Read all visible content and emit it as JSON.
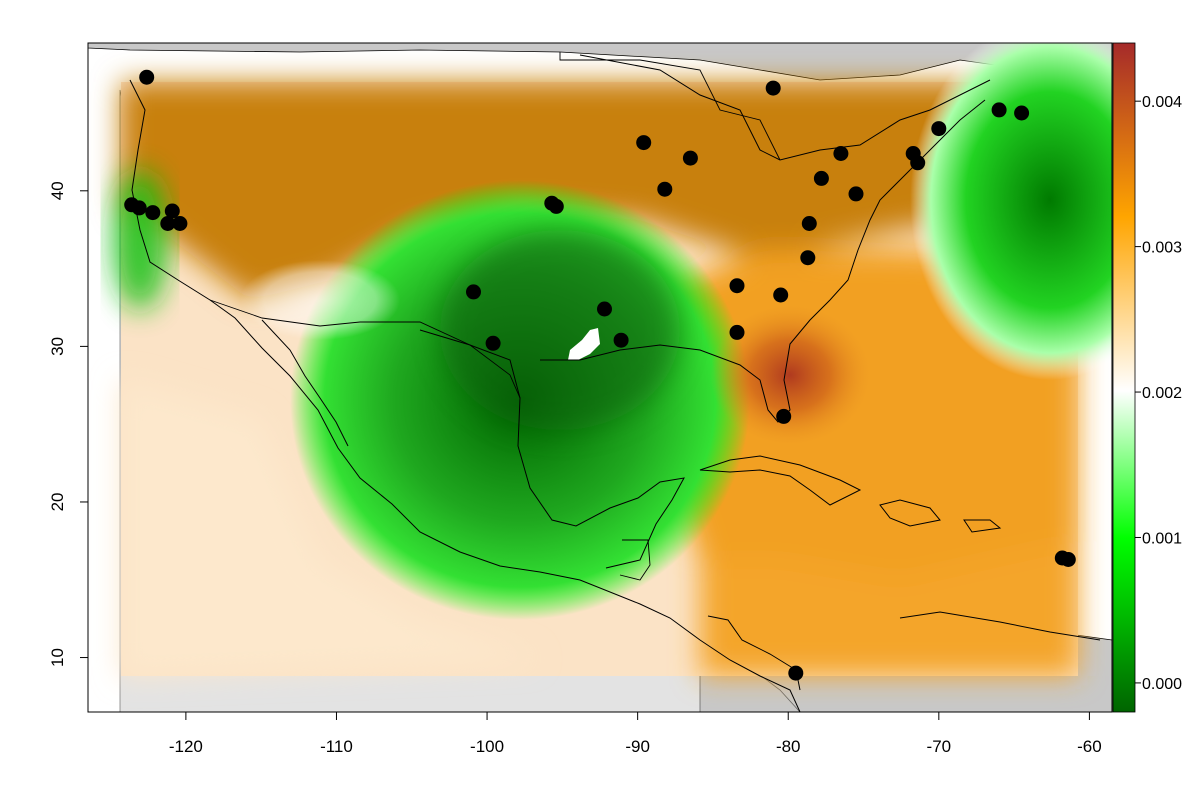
{
  "chart_data": {
    "type": "heatmap",
    "title": "",
    "xlabel": "",
    "ylabel": "",
    "xlim": [
      -126.5,
      -58.5
    ],
    "ylim": [
      6.5,
      49.5
    ],
    "x_ticks": [
      "-120",
      "-110",
      "-100",
      "-90",
      "-80",
      "-70",
      "-60"
    ],
    "y_ticks": [
      "10",
      "20",
      "30",
      "40"
    ],
    "field_extent": {
      "lon": [
        -124,
        -61.2
      ],
      "lat": [
        8.8,
        47.3
      ]
    },
    "colorbar": {
      "range": [
        -0.0002,
        0.0044
      ],
      "ticks": [
        "0.000",
        "0.001",
        "0.002",
        "0.003",
        "0.004"
      ],
      "colors": [
        "#006400",
        "#00ff00",
        "#ffffff",
        "#ffa500",
        "#a52a2a"
      ]
    },
    "station_points": [
      [
        -122.6,
        47.3
      ],
      [
        -123.6,
        39.1
      ],
      [
        -123.1,
        38.9
      ],
      [
        -122.2,
        38.6
      ],
      [
        -121.2,
        37.9
      ],
      [
        -120.9,
        38.7
      ],
      [
        -120.4,
        37.9
      ],
      [
        -95.7,
        39.2
      ],
      [
        -95.4,
        39.0
      ],
      [
        -89.6,
        43.1
      ],
      [
        -88.2,
        40.1
      ],
      [
        -86.5,
        42.1
      ],
      [
        -81.0,
        46.6
      ],
      [
        -78.6,
        37.9
      ],
      [
        -77.8,
        40.8
      ],
      [
        -76.5,
        42.4
      ],
      [
        -75.5,
        39.8
      ],
      [
        -71.7,
        42.4
      ],
      [
        -71.4,
        41.8
      ],
      [
        -70.0,
        44.0
      ],
      [
        -66.0,
        45.2
      ],
      [
        -64.5,
        45.0
      ],
      [
        -78.7,
        35.7
      ],
      [
        -83.4,
        33.9
      ],
      [
        -80.5,
        33.3
      ],
      [
        -83.4,
        30.9
      ],
      [
        -100.9,
        33.5
      ],
      [
        -99.6,
        30.2
      ],
      [
        -92.2,
        32.4
      ],
      [
        -91.1,
        30.4
      ],
      [
        -80.3,
        25.5
      ],
      [
        -79.5,
        9.0
      ],
      [
        -61.8,
        16.4
      ],
      [
        -61.4,
        16.3
      ]
    ]
  }
}
